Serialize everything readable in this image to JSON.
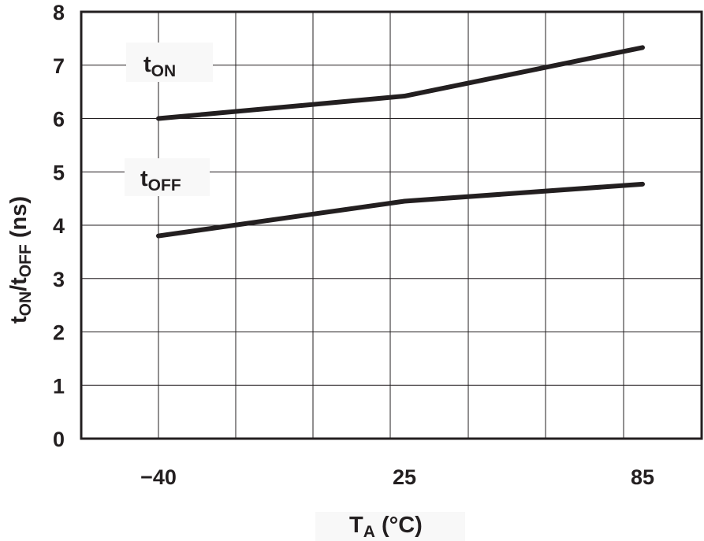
{
  "chart_data": {
    "type": "line",
    "title": "",
    "xlabel": {
      "main": "T",
      "sub": "A",
      "suffix": " (°C)"
    },
    "ylabel": {
      "parts": [
        {
          "text": "t",
          "sub": false
        },
        {
          "text": "ON",
          "sub": true
        },
        {
          "text": "/t",
          "sub": false
        },
        {
          "text": "OFF",
          "sub": true
        },
        {
          "text": " (ns)",
          "sub": false
        }
      ]
    },
    "x_ticks": [
      {
        "value": -40,
        "label": "−40"
      },
      {
        "value": 25,
        "label": "25"
      },
      {
        "value": 85,
        "label": "85"
      }
    ],
    "y_ticks": [
      0,
      1,
      2,
      3,
      4,
      5,
      6,
      7,
      8
    ],
    "ylim": [
      0,
      8
    ],
    "grid": true,
    "series": [
      {
        "name": "tON",
        "label_main": "t",
        "label_sub": "ON",
        "x": [
          -40,
          25,
          85
        ],
        "y": [
          6.0,
          6.42,
          7.33
        ]
      },
      {
        "name": "tOFF",
        "label_main": "t",
        "label_sub": "OFF",
        "x": [
          -40,
          25,
          85
        ],
        "y": [
          3.8,
          4.45,
          4.77
        ]
      }
    ]
  }
}
